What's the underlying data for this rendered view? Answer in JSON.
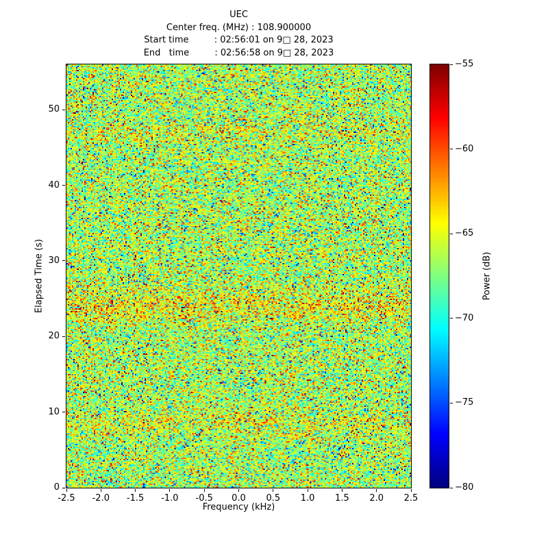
{
  "chart_data": {
    "type": "heatmap",
    "title": "UEC",
    "subtitle_lines": [
      "Center freq. (MHz) : 108.900000",
      "Start time         : 02:56:01 on 9□ 28, 2023",
      "End   time         : 02:56:58 on 9□ 28, 2023"
    ],
    "center_freq_mhz": 108.9,
    "start_time": "02:56:01 on 9□ 28, 2023",
    "end_time": "02:56:58 on 9□ 28, 2023",
    "xlabel": "Frequency (kHz)",
    "ylabel": "Elapsed Time (s)",
    "xlim": [
      -2.5,
      2.5
    ],
    "ylim": [
      0,
      56
    ],
    "grid": false,
    "x_ticks": {
      "values": [
        -2.5,
        -2.0,
        -1.5,
        -1.0,
        -0.5,
        0.0,
        0.5,
        1.0,
        1.5,
        2.0,
        2.5
      ],
      "labels": [
        "-2.5",
        "-2.0",
        "-1.5",
        "-1.0",
        "-0.5",
        "0.0",
        "0.5",
        "1.0",
        "1.5",
        "2.0",
        "2.5"
      ]
    },
    "y_ticks": {
      "values": [
        0,
        10,
        20,
        30,
        40,
        50
      ],
      "labels": [
        "0",
        "10",
        "20",
        "30",
        "40",
        "50"
      ]
    },
    "colorbar": {
      "label": "Power (dB)",
      "position": "right",
      "vmin": -80,
      "vmax": -55,
      "tick_values": [
        -55,
        -60,
        -65,
        -70,
        -75,
        -80
      ],
      "tick_labels": [
        "−55",
        "−60",
        "−65",
        "−70",
        "−75",
        "−80"
      ],
      "colormap": "jet",
      "colormap_key_colors": [
        "#00008f",
        "#0000ff",
        "#00ffff",
        "#80ff80",
        "#ffff00",
        "#ff0000",
        "#8f0000"
      ]
    },
    "noise_model": {
      "description": "broadband noise floor, mostly green/cyan (−70 to −63 dB) with scattered hot (red/orange) and cold (blue) specks; slightly hotter horizontal bands near 8.5 s, 24 s and 47 s elapsed time",
      "seed": 987654321,
      "mean_db": -66.5,
      "std_db": 3.2,
      "hot_speck_prob": 0.02,
      "cold_speck_prob": 0.02,
      "bands": [
        {
          "center_s": 24.0,
          "width_s": 1.5,
          "boost_db": 2.0
        },
        {
          "center_s": 8.5,
          "width_s": 1.0,
          "boost_db": 1.2
        },
        {
          "center_s": 47.0,
          "width_s": 1.0,
          "boost_db": 0.8
        }
      ],
      "grid_cols": 252,
      "grid_rows": 309
    }
  }
}
